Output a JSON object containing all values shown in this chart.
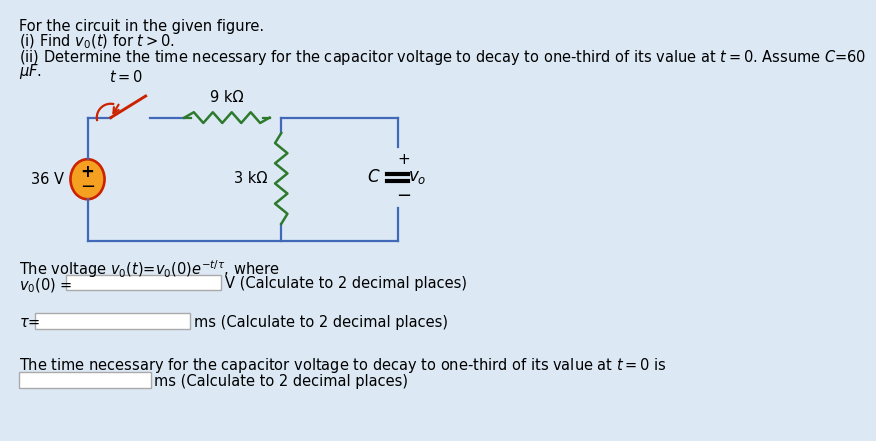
{
  "bg_color": "#dce9f5",
  "title_line1": "For the circuit in the given figure.",
  "title_line2": "(i) Find $v_0(t)$ for $t > 0$.",
  "title_line3": "(ii) Determine the time necessary for the capacitor voltage to decay to one-third of its value at $t = 0$. Assume $C$=60",
  "title_line3b": "$\\mu F$.",
  "circuit_label_t0": "$t=0$",
  "circuit_label_9k": "9 kΩ",
  "circuit_label_3k": "3 kΩ",
  "circuit_label_36v": "36 V",
  "circuit_label_C": "$C$",
  "circuit_label_v0": "$v_o$",
  "circuit_label_plus": "+",
  "circuit_label_minus": "−",
  "voltage_text": "The voltage $v_0(t)$=$v_0(0)e^{-t/\\tau}$, where",
  "v0_label": "$v_0(0)$ =",
  "v0_unit": "V (Calculate to 2 decimal places)",
  "tau_label": "$\\tau$=",
  "tau_unit": "ms (Calculate to 2 decimal places)",
  "time_text": "The time necessary for the capacitor voltage to decay to one-third of its value at $t = 0$ is",
  "time_unit": "ms (Calculate to 2 decimal places)",
  "box_color": "#ffffff",
  "box_edge": "#aaaaaa",
  "text_color": "#000000",
  "wire_color": "#4169b8",
  "resistor_color": "#2d7a2d",
  "source_color": "#cc2200",
  "source_fill": "#f5a020",
  "cap_color": "#000000",
  "font_size_main": 10.5,
  "circuit_bg": "#dce9f5"
}
